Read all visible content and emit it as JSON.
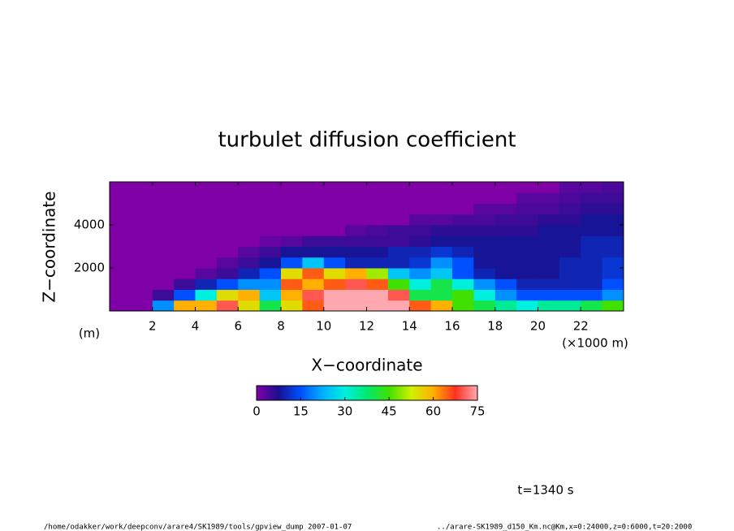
{
  "chart_data": {
    "type": "heatmap",
    "title": "turbulet diffusion coefficient",
    "xlabel": "X−coordinate",
    "ylabel": "Z−coordinate",
    "yunit": "(m)",
    "xunit": "(×1000 m)",
    "time_label": "t=1340 s",
    "footer_left": "/home/odakker/work/deepconv/arare4/SK1989/tools/gpview_dump  2007-01-07",
    "footer_right": "../arare-SK1989_d150_Km.nc@Km,x=0:24000,z=0:6000,t=20:2000",
    "x": [
      0.5,
      1.5,
      2.5,
      3.5,
      4.5,
      5.5,
      6.5,
      7.5,
      8.5,
      9.5,
      10.5,
      11.5,
      12.5,
      13.5,
      14.5,
      15.5,
      16.5,
      17.5,
      18.5,
      19.5,
      20.5,
      21.5,
      22.5,
      23.5
    ],
    "y": [
      250,
      750,
      1250,
      1750,
      2250,
      2750,
      3250,
      3750,
      4250,
      4750,
      5250,
      5750
    ],
    "z": [
      [
        0,
        0,
        20,
        60,
        60,
        70,
        55,
        40,
        55,
        65,
        75,
        75,
        75,
        75,
        65,
        60,
        45,
        40,
        35,
        30,
        35,
        35,
        40,
        45
      ],
      [
        0,
        0,
        5,
        15,
        30,
        55,
        60,
        25,
        60,
        70,
        75,
        75,
        75,
        70,
        40,
        40,
        45,
        30,
        20,
        15,
        15,
        15,
        15,
        20
      ],
      [
        0,
        0,
        0,
        5,
        10,
        15,
        20,
        20,
        65,
        60,
        65,
        70,
        65,
        45,
        30,
        40,
        30,
        20,
        15,
        10,
        10,
        10,
        10,
        15
      ],
      [
        0,
        0,
        0,
        0,
        3,
        5,
        10,
        15,
        55,
        65,
        55,
        60,
        50,
        25,
        20,
        25,
        15,
        10,
        8,
        8,
        8,
        10,
        10,
        12
      ],
      [
        0,
        0,
        0,
        0,
        0,
        3,
        5,
        8,
        15,
        25,
        15,
        10,
        10,
        10,
        12,
        20,
        15,
        8,
        8,
        8,
        8,
        10,
        10,
        12
      ],
      [
        0,
        0,
        0,
        0,
        0,
        0,
        3,
        5,
        8,
        8,
        8,
        8,
        8,
        10,
        10,
        12,
        10,
        8,
        8,
        8,
        8,
        8,
        10,
        10
      ],
      [
        0,
        0,
        0,
        0,
        0,
        0,
        0,
        2,
        3,
        5,
        5,
        5,
        5,
        5,
        6,
        8,
        8,
        8,
        8,
        8,
        8,
        8,
        10,
        10
      ],
      [
        0,
        0,
        0,
        0,
        0,
        0,
        0,
        0,
        0,
        0,
        0,
        3,
        4,
        5,
        5,
        6,
        6,
        6,
        6,
        6,
        8,
        8,
        8,
        8
      ],
      [
        0,
        0,
        0,
        0,
        0,
        0,
        0,
        0,
        0,
        0,
        0,
        0,
        0,
        0,
        3,
        3,
        4,
        4,
        5,
        5,
        6,
        6,
        8,
        8
      ],
      [
        0,
        0,
        0,
        0,
        0,
        0,
        0,
        0,
        0,
        0,
        0,
        0,
        0,
        0,
        0,
        0,
        0,
        3,
        3,
        4,
        4,
        5,
        6,
        6
      ],
      [
        0,
        0,
        0,
        0,
        0,
        0,
        0,
        0,
        0,
        0,
        0,
        0,
        0,
        0,
        0,
        0,
        0,
        0,
        0,
        3,
        3,
        4,
        5,
        5
      ],
      [
        0,
        0,
        0,
        0,
        0,
        0,
        0,
        0,
        0,
        0,
        0,
        0,
        0,
        0,
        0,
        0,
        0,
        0,
        0,
        0,
        0,
        3,
        3,
        4
      ]
    ],
    "xlim": [
      0,
      24
    ],
    "xticks": [
      2,
      4,
      6,
      8,
      10,
      12,
      14,
      16,
      18,
      20,
      22
    ],
    "ylim": [
      0,
      6000
    ],
    "yticks": [
      2000,
      4000
    ],
    "clim": [
      0,
      75
    ],
    "cticks": [
      0,
      15,
      30,
      45,
      60,
      75
    ],
    "colorscale": [
      "#8000a8",
      "#1a1090",
      "#0050ff",
      "#00b0ff",
      "#00f0e0",
      "#00e870",
      "#40e000",
      "#d0f000",
      "#ffb000",
      "#ff3020",
      "#ffa8b0"
    ]
  }
}
